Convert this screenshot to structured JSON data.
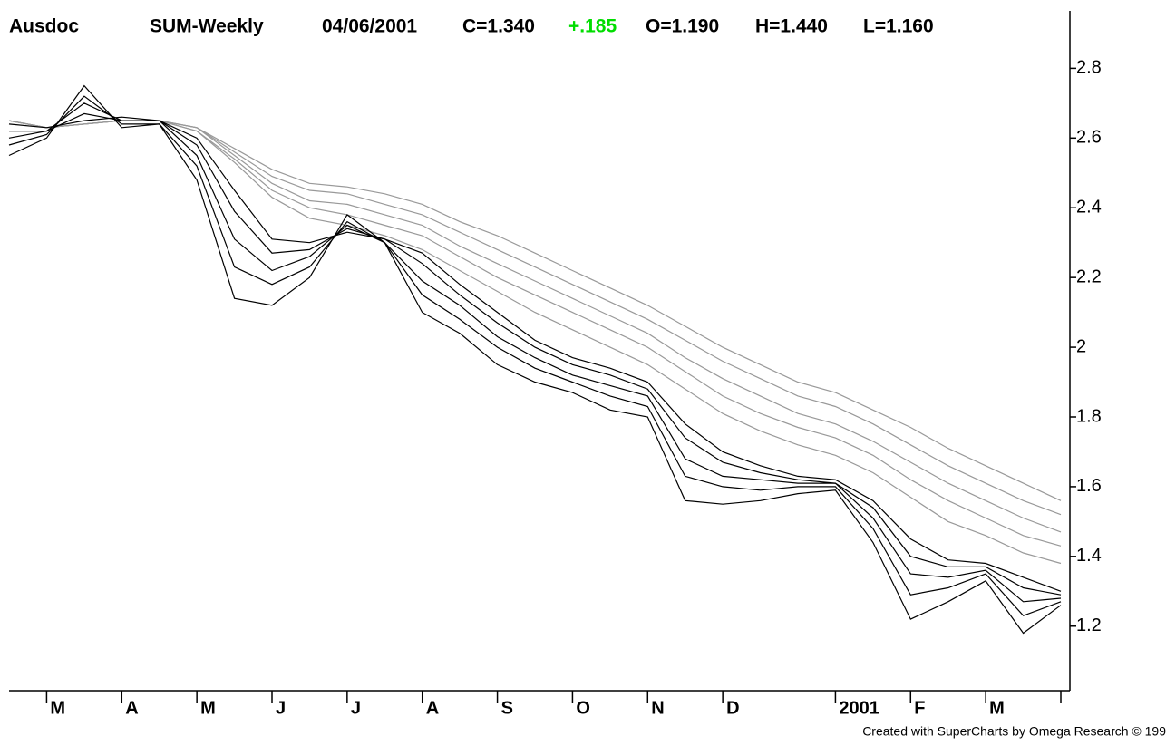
{
  "chart_data": {
    "type": "line",
    "title": "Ausdoc",
    "annotations": [
      {
        "text": "SUM-Weekly",
        "color": "#000000"
      },
      {
        "text": "04/06/2001",
        "color": "#000000"
      },
      {
        "text": "C=1.340",
        "color": "#000000"
      },
      {
        "text": "+.185",
        "color": "#00dd00"
      },
      {
        "text": "O=1.190",
        "color": "#000000"
      },
      {
        "text": "H=1.440",
        "color": "#000000"
      },
      {
        "text": "L=1.160",
        "color": "#000000"
      }
    ],
    "footnote": "Created with SuperCharts by Omega Research © 199",
    "categories": [
      null,
      "M",
      null,
      "A",
      null,
      "M",
      null,
      "J",
      null,
      "J",
      null,
      "A",
      null,
      "S",
      null,
      "O",
      null,
      "N",
      null,
      "D",
      null,
      null,
      "2001",
      null,
      "F",
      null,
      "M",
      null,
      null
    ],
    "ylim": [
      1.02,
      2.97
    ],
    "yticks": [
      1.2,
      1.4,
      1.6,
      1.8,
      2,
      2.2,
      2.4,
      2.6,
      2.8
    ],
    "series": [
      {
        "color": "#999999",
        "values": [
          2.65,
          2.63,
          2.64,
          2.65,
          2.65,
          2.63,
          2.57,
          2.51,
          2.47,
          2.46,
          2.44,
          2.41,
          2.36,
          2.32,
          2.27,
          2.22,
          2.17,
          2.12,
          2.06,
          2.0,
          1.95,
          1.9,
          1.87,
          1.82,
          1.77,
          1.71,
          1.66,
          1.61,
          1.56
        ]
      },
      {
        "color": "#999999",
        "values": [
          2.65,
          2.63,
          2.64,
          2.65,
          2.65,
          2.63,
          2.56,
          2.49,
          2.45,
          2.44,
          2.41,
          2.38,
          2.33,
          2.28,
          2.23,
          2.18,
          2.13,
          2.08,
          2.02,
          1.96,
          1.91,
          1.86,
          1.83,
          1.78,
          1.72,
          1.66,
          1.61,
          1.56,
          1.52
        ]
      },
      {
        "color": "#999999",
        "values": [
          2.65,
          2.63,
          2.64,
          2.65,
          2.65,
          2.63,
          2.55,
          2.47,
          2.42,
          2.41,
          2.38,
          2.35,
          2.29,
          2.24,
          2.19,
          2.14,
          2.09,
          2.04,
          1.97,
          1.91,
          1.86,
          1.81,
          1.78,
          1.73,
          1.67,
          1.61,
          1.56,
          1.51,
          1.47
        ]
      },
      {
        "color": "#999999",
        "values": [
          2.65,
          2.63,
          2.64,
          2.65,
          2.65,
          2.62,
          2.54,
          2.45,
          2.4,
          2.38,
          2.35,
          2.32,
          2.26,
          2.2,
          2.15,
          2.1,
          2.05,
          2.0,
          1.93,
          1.86,
          1.81,
          1.77,
          1.74,
          1.69,
          1.62,
          1.56,
          1.51,
          1.46,
          1.43
        ]
      },
      {
        "color": "#999999",
        "values": [
          2.65,
          2.63,
          2.64,
          2.65,
          2.65,
          2.62,
          2.53,
          2.43,
          2.37,
          2.35,
          2.32,
          2.28,
          2.22,
          2.16,
          2.1,
          2.05,
          2.0,
          1.95,
          1.88,
          1.81,
          1.76,
          1.72,
          1.69,
          1.64,
          1.57,
          1.5,
          1.46,
          1.41,
          1.38
        ]
      },
      {
        "color": "#000000",
        "values": [
          2.64,
          2.63,
          2.65,
          2.66,
          2.65,
          2.6,
          2.45,
          2.31,
          2.3,
          2.33,
          2.31,
          2.27,
          2.18,
          2.1,
          2.02,
          1.97,
          1.94,
          1.9,
          1.78,
          1.7,
          1.66,
          1.63,
          1.62,
          1.56,
          1.45,
          1.39,
          1.38,
          1.34,
          1.3
        ]
      },
      {
        "color": "#000000",
        "values": [
          2.62,
          2.62,
          2.67,
          2.65,
          2.65,
          2.58,
          2.39,
          2.27,
          2.28,
          2.34,
          2.31,
          2.24,
          2.15,
          2.07,
          2.0,
          1.95,
          1.92,
          1.88,
          1.74,
          1.67,
          1.64,
          1.62,
          1.61,
          1.54,
          1.4,
          1.37,
          1.37,
          1.31,
          1.29
        ]
      },
      {
        "color": "#000000",
        "values": [
          2.6,
          2.62,
          2.7,
          2.65,
          2.65,
          2.55,
          2.31,
          2.22,
          2.26,
          2.35,
          2.3,
          2.19,
          2.12,
          2.03,
          1.97,
          1.92,
          1.89,
          1.86,
          1.68,
          1.63,
          1.62,
          1.61,
          1.61,
          1.51,
          1.35,
          1.34,
          1.36,
          1.27,
          1.28
        ]
      },
      {
        "color": "#000000",
        "values": [
          2.58,
          2.61,
          2.72,
          2.64,
          2.64,
          2.52,
          2.23,
          2.18,
          2.23,
          2.36,
          2.3,
          2.15,
          2.08,
          2.0,
          1.94,
          1.9,
          1.86,
          1.83,
          1.63,
          1.6,
          1.59,
          1.6,
          1.6,
          1.48,
          1.29,
          1.31,
          1.35,
          1.23,
          1.27
        ]
      },
      {
        "color": "#000000",
        "values": [
          2.55,
          2.6,
          2.75,
          2.63,
          2.64,
          2.48,
          2.14,
          2.12,
          2.2,
          2.38,
          2.3,
          2.1,
          2.04,
          1.95,
          1.9,
          1.87,
          1.82,
          1.8,
          1.56,
          1.55,
          1.56,
          1.58,
          1.59,
          1.44,
          1.22,
          1.27,
          1.33,
          1.18,
          1.26
        ]
      }
    ]
  }
}
